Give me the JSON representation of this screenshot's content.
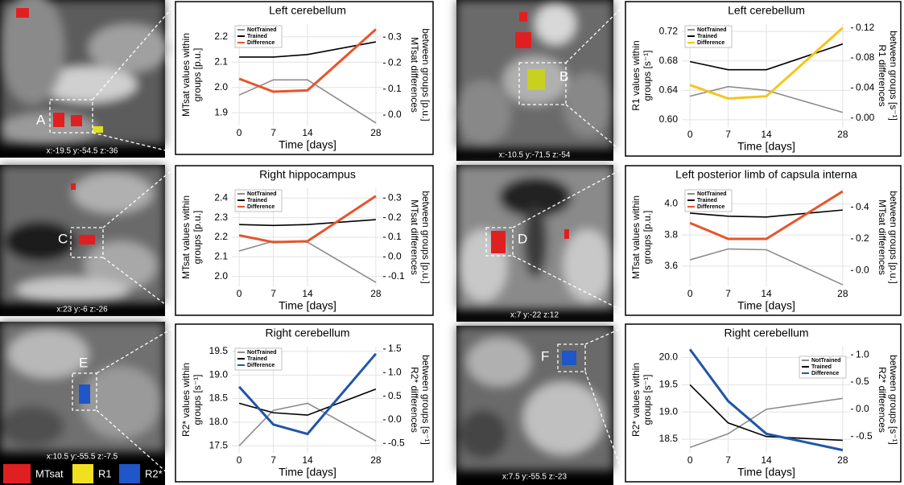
{
  "chart_data": [
    {
      "type": "line",
      "title": "Left cerebellum",
      "xlabel": "Time [days]",
      "ylabel": [
        "MTsat values within",
        "groups [p.u.]"
      ],
      "y2label": [
        "MTsat differences",
        "between groups [p.u.]"
      ],
      "x": [
        0,
        7,
        14,
        28
      ],
      "xlim": [
        -1.5,
        29.5
      ],
      "xticks": [
        0,
        7,
        14,
        28
      ],
      "ylim": [
        1.85,
        2.25
      ],
      "yticks": [
        1.9,
        {
          "value": 2,
          "label": "2.0"
        },
        2.1,
        2.2
      ],
      "y2lim": [
        -0.04,
        0.35
      ],
      "y2ticks": [
        {
          "value": 0,
          "label": "0.0"
        },
        0.1,
        0.2,
        0.3
      ],
      "grid": true,
      "legend": "upper left",
      "series": [
        {
          "name": "NotTrained",
          "color": "#8c8c8c",
          "values": [
            1.97,
            2.03,
            2.03,
            1.86
          ]
        },
        {
          "name": "Trained",
          "color": "#000000",
          "values": [
            2.12,
            2.12,
            2.13,
            2.18
          ]
        },
        {
          "name": "Difference",
          "color": "#e8542b",
          "axis": "y2",
          "values": [
            0.14,
            0.09,
            0.095,
            0.33
          ]
        }
      ]
    },
    {
      "type": "line",
      "title": "Left cerebellum",
      "xlabel": "Time [days]",
      "ylabel": [
        "R1 values within",
        "groups [s⁻¹]"
      ],
      "y2label": [
        "R1 differences",
        "between groups [s⁻¹]"
      ],
      "x": [
        0,
        7,
        14,
        28
      ],
      "xlim": [
        -1.5,
        29.5
      ],
      "xticks": [
        0,
        7,
        14,
        28
      ],
      "ylim": [
        0.59,
        0.73
      ],
      "yticks": [
        {
          "value": 0.6,
          "label": "0.60"
        },
        0.64,
        0.68,
        0.72
      ],
      "y2lim": [
        -0.012,
        0.125
      ],
      "y2ticks": [
        {
          "value": 0,
          "label": "0.00"
        },
        0.04,
        0.08,
        0.12
      ],
      "grid": true,
      "legend": "upper left",
      "series": [
        {
          "name": "NotTrained",
          "color": "#8c8c8c",
          "values": [
            0.632,
            0.645,
            0.64,
            0.61
          ]
        },
        {
          "name": "Trained",
          "color": "#000000",
          "values": [
            0.679,
            0.668,
            0.668,
            0.703
          ]
        },
        {
          "name": "Difference",
          "color": "#f5c518",
          "axis": "y2",
          "values": [
            0.044,
            0.026,
            0.029,
            0.12
          ]
        }
      ]
    },
    {
      "type": "line",
      "title": "Right hippocampus",
      "xlabel": "Time [days]",
      "ylabel": [
        "MTsat values within",
        "groups [p.u.]"
      ],
      "y2label": [
        "MTsat differences",
        "between groups [p.u.]"
      ],
      "x": [
        0,
        7,
        14,
        28
      ],
      "xlim": [
        -1.5,
        29.5
      ],
      "xticks": [
        0,
        7,
        14,
        28
      ],
      "ylim": [
        1.95,
        2.45
      ],
      "yticks": [
        {
          "value": 2,
          "label": "2.0"
        },
        2.1,
        2.2,
        2.3,
        2.4
      ],
      "y2lim": [
        -0.15,
        0.35
      ],
      "y2ticks": [
        -0.1,
        {
          "value": 0,
          "label": "0.0"
        },
        0.1,
        0.2,
        0.3
      ],
      "grid": true,
      "legend": "upper left",
      "series": [
        {
          "name": "NotTrained",
          "color": "#8c8c8c",
          "values": [
            2.13,
            2.18,
            2.175,
            1.97
          ]
        },
        {
          "name": "Trained",
          "color": "#000000",
          "values": [
            2.265,
            2.26,
            2.265,
            2.29
          ]
        },
        {
          "name": "Difference",
          "color": "#e8542b",
          "axis": "y2",
          "values": [
            0.11,
            0.075,
            0.08,
            0.31
          ]
        }
      ]
    },
    {
      "type": "line",
      "title": "Left posterior limb of capsula interna",
      "xlabel": "Time [days]",
      "ylabel": [
        "MTsat values within",
        "groups [p.u.]"
      ],
      "y2label": [
        "MTsat differences",
        "between groups [p.u.]"
      ],
      "x": [
        0,
        7,
        14,
        28
      ],
      "xlim": [
        -1.5,
        29.5
      ],
      "xticks": [
        0,
        7,
        14,
        28
      ],
      "ylim": [
        3.47,
        4.1
      ],
      "yticks": [
        3.6,
        3.8,
        {
          "value": 4,
          "label": "4.0"
        }
      ],
      "y2lim": [
        -0.1,
        0.52
      ],
      "y2ticks": [
        {
          "value": 0,
          "label": "0.0"
        },
        0.2,
        0.4
      ],
      "grid": true,
      "legend": "upper left",
      "series": [
        {
          "name": "NotTrained",
          "color": "#8c8c8c",
          "values": [
            3.64,
            3.71,
            3.705,
            3.48
          ]
        },
        {
          "name": "Trained",
          "color": "#000000",
          "values": [
            3.94,
            3.92,
            3.915,
            3.96
          ]
        },
        {
          "name": "Difference",
          "color": "#e8542b",
          "axis": "y2",
          "values": [
            0.3,
            0.2,
            0.2,
            0.5
          ]
        }
      ]
    },
    {
      "type": "line",
      "title": "Right cerebellum",
      "xlabel": "Time [days]",
      "ylabel": [
        "R2* values within",
        "groups [s⁻¹]"
      ],
      "y2label": [
        "R2* differences",
        "between groups [s⁻¹]"
      ],
      "x": [
        0,
        7,
        14,
        28
      ],
      "xlim": [
        -1.5,
        29.5
      ],
      "xticks": [
        0,
        7,
        14,
        28
      ],
      "ylim": [
        17.35,
        19.6
      ],
      "yticks": [
        17.5,
        {
          "value": 18,
          "label": "18.0"
        },
        18.5,
        {
          "value": 19,
          "label": "19.0"
        },
        19.5
      ],
      "y2lim": [
        -0.7,
        1.55
      ],
      "y2ticks": [
        -0.5,
        {
          "value": 0,
          "label": "0.0"
        },
        0.5,
        {
          "value": 1,
          "label": "1.0"
        },
        1.5
      ],
      "grid": true,
      "legend": "upper left",
      "series": [
        {
          "name": "NotTrained",
          "color": "#8c8c8c",
          "values": [
            17.5,
            18.25,
            18.4,
            17.6
          ]
        },
        {
          "name": "Trained",
          "color": "#000000",
          "values": [
            18.4,
            18.2,
            18.15,
            18.7
          ]
        },
        {
          "name": "Difference",
          "color": "#1f56a8",
          "axis": "y2",
          "values": [
            0.7,
            -0.1,
            -0.3,
            1.4
          ]
        }
      ]
    },
    {
      "type": "line",
      "title": "Right cerebellum",
      "xlabel": "Time [days]",
      "ylabel": [
        "R2* values within",
        "groups [s⁻¹]"
      ],
      "y2label": [
        "R2* differences",
        "between groups [s⁻¹]"
      ],
      "x": [
        0,
        7,
        14,
        28
      ],
      "xlim": [
        -1.5,
        29.5
      ],
      "xticks": [
        0,
        7,
        14,
        28
      ],
      "ylim": [
        18.25,
        20.2
      ],
      "yticks": [
        18.5,
        {
          "value": 19,
          "label": "19.0"
        },
        19.5,
        {
          "value": 20,
          "label": "20.0"
        }
      ],
      "y2lim": [
        -0.8,
        1.15
      ],
      "y2ticks": [
        -0.5,
        {
          "value": 0,
          "label": "0.0"
        },
        0.5,
        {
          "value": 1,
          "label": "1.0"
        }
      ],
      "grid": true,
      "legend": "upper right",
      "series": [
        {
          "name": "NotTrained",
          "color": "#8c8c8c",
          "values": [
            18.35,
            18.6,
            19.05,
            19.25
          ]
        },
        {
          "name": "Trained",
          "color": "#000000",
          "values": [
            19.5,
            18.8,
            18.55,
            18.48
          ]
        },
        {
          "name": "Difference",
          "color": "#1f56a8",
          "axis": "y2",
          "values": [
            1.1,
            0.15,
            -0.45,
            -0.75
          ]
        }
      ]
    }
  ],
  "panels": [
    {
      "letter": "A",
      "coords": "x:-19.5 y:-54.5 z:-36"
    },
    {
      "letter": "B",
      "coords": "x:-10.5 y:-71.5 z:-54"
    },
    {
      "letter": "C",
      "coords": "x:23 y:-6 z:-26"
    },
    {
      "letter": "D",
      "coords": "x:7 y:-22 z:12"
    },
    {
      "letter": "E",
      "coords": "x:10.5 y:-55.5 z:-7.5"
    },
    {
      "letter": "F",
      "coords": "x:7.5 y:-55.5 z:-23"
    }
  ],
  "map_legend": [
    "MTsat",
    "R1",
    "R2*"
  ]
}
